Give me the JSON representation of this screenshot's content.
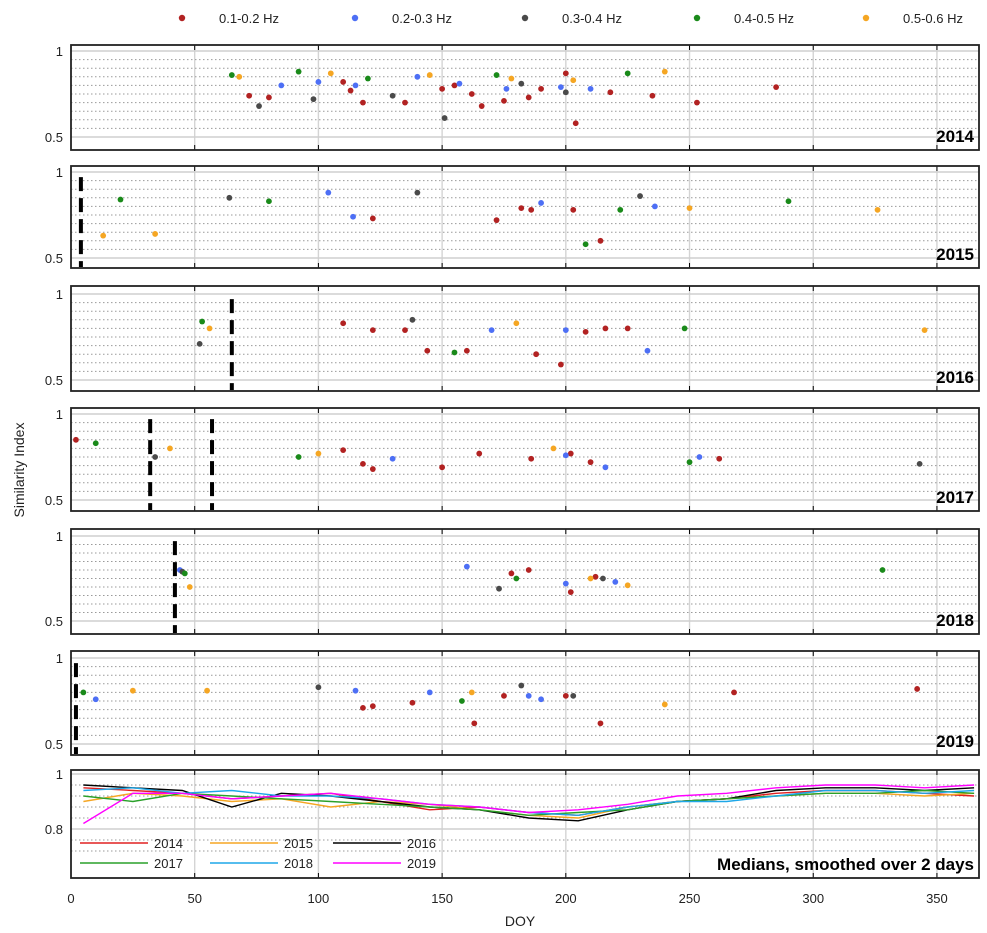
{
  "figure": {
    "xlabel": "DOY",
    "ylabel": "Similarity Index"
  },
  "legend": [
    {
      "label": "0.1-0.2 Hz",
      "color": "#b22222"
    },
    {
      "label": "0.2-0.3 Hz",
      "color": "#4d6ff5"
    },
    {
      "label": "0.3-0.4 Hz",
      "color": "#4a4a4a"
    },
    {
      "label": "0.4-0.5 Hz",
      "color": "#1a8a1a"
    },
    {
      "label": "0.5-0.6 Hz",
      "color": "#f5a623"
    }
  ],
  "chart_data": [
    {
      "type": "scatter",
      "panel_label": "2014",
      "xlim": [
        0,
        367
      ],
      "ylim": [
        0.4,
        1.02
      ],
      "yticks": [
        0.5,
        1
      ],
      "xticks": [
        0,
        50,
        100,
        150,
        200,
        250,
        300,
        350
      ],
      "grid": true,
      "dashed_markers_doy": [],
      "series": [
        {
          "name": "0.1-0.2 Hz",
          "x": [
            72,
            80,
            110,
            113,
            118,
            135,
            150,
            155,
            162,
            166,
            175,
            185,
            190,
            200,
            204,
            218,
            235,
            253,
            285
          ],
          "y": [
            0.74,
            0.73,
            0.82,
            0.77,
            0.7,
            0.7,
            0.78,
            0.8,
            0.75,
            0.68,
            0.71,
            0.73,
            0.78,
            0.87,
            0.58,
            0.76,
            0.74,
            0.7,
            0.79
          ]
        },
        {
          "name": "0.2-0.3 Hz",
          "x": [
            85,
            100,
            115,
            140,
            157,
            176,
            198,
            210
          ],
          "y": [
            0.8,
            0.82,
            0.8,
            0.85,
            0.81,
            0.78,
            0.79,
            0.78
          ]
        },
        {
          "name": "0.3-0.4 Hz",
          "x": [
            76,
            98,
            130,
            151,
            182,
            200
          ],
          "y": [
            0.68,
            0.72,
            0.74,
            0.61,
            0.81,
            0.76
          ]
        },
        {
          "name": "0.4-0.5 Hz",
          "x": [
            65,
            92,
            120,
            172,
            225
          ],
          "y": [
            0.86,
            0.88,
            0.84,
            0.86,
            0.87
          ]
        },
        {
          "name": "0.5-0.6 Hz",
          "x": [
            68,
            105,
            145,
            178,
            203,
            240
          ],
          "y": [
            0.85,
            0.87,
            0.86,
            0.84,
            0.83,
            0.88
          ]
        }
      ]
    },
    {
      "type": "scatter",
      "panel_label": "2015",
      "xlim": [
        0,
        367
      ],
      "ylim": [
        0.4,
        1.02
      ],
      "yticks": [
        0.5,
        1
      ],
      "xticks": [
        0,
        50,
        100,
        150,
        200,
        250,
        300,
        350
      ],
      "grid": true,
      "dashed_markers_doy": [
        4
      ],
      "series": [
        {
          "name": "0.1-0.2 Hz",
          "x": [
            122,
            172,
            182,
            186,
            203,
            214
          ],
          "y": [
            0.73,
            0.72,
            0.79,
            0.78,
            0.78,
            0.6
          ]
        },
        {
          "name": "0.2-0.3 Hz",
          "x": [
            104,
            114,
            190,
            236
          ],
          "y": [
            0.88,
            0.74,
            0.82,
            0.8
          ]
        },
        {
          "name": "0.3-0.4 Hz",
          "x": [
            64,
            140,
            230
          ],
          "y": [
            0.85,
            0.88,
            0.86
          ]
        },
        {
          "name": "0.4-0.5 Hz",
          "x": [
            20,
            80,
            208,
            222,
            290
          ],
          "y": [
            0.84,
            0.83,
            0.58,
            0.78,
            0.83
          ]
        },
        {
          "name": "0.5-0.6 Hz",
          "x": [
            13,
            34,
            250,
            326
          ],
          "y": [
            0.63,
            0.64,
            0.79,
            0.78
          ]
        }
      ]
    },
    {
      "type": "scatter",
      "panel_label": "2016",
      "xlim": [
        0,
        367
      ],
      "ylim": [
        0.4,
        1.02
      ],
      "yticks": [
        0.5,
        1
      ],
      "xticks": [
        0,
        50,
        100,
        150,
        200,
        250,
        300,
        350
      ],
      "grid": true,
      "dashed_markers_doy": [
        65
      ],
      "series": [
        {
          "name": "0.1-0.2 Hz",
          "x": [
            110,
            122,
            135,
            144,
            160,
            188,
            198,
            208,
            216,
            225
          ],
          "y": [
            0.83,
            0.79,
            0.79,
            0.67,
            0.67,
            0.65,
            0.59,
            0.78,
            0.8,
            0.8
          ]
        },
        {
          "name": "0.2-0.3 Hz",
          "x": [
            170,
            200,
            233
          ],
          "y": [
            0.79,
            0.79,
            0.67
          ]
        },
        {
          "name": "0.3-0.4 Hz",
          "x": [
            52,
            138
          ],
          "y": [
            0.71,
            0.85
          ]
        },
        {
          "name": "0.4-0.5 Hz",
          "x": [
            53,
            155,
            248
          ],
          "y": [
            0.84,
            0.66,
            0.8
          ]
        },
        {
          "name": "0.5-0.6 Hz",
          "x": [
            56,
            180,
            345
          ],
          "y": [
            0.8,
            0.83,
            0.79
          ]
        }
      ]
    },
    {
      "type": "scatter",
      "panel_label": "2017",
      "xlim": [
        0,
        367
      ],
      "ylim": [
        0.4,
        1.02
      ],
      "yticks": [
        0.5,
        1
      ],
      "xticks": [
        0,
        50,
        100,
        150,
        200,
        250,
        300,
        350
      ],
      "grid": true,
      "dashed_markers_doy": [
        32,
        57
      ],
      "series": [
        {
          "name": "0.1-0.2 Hz",
          "x": [
            2,
            110,
            118,
            122,
            150,
            165,
            186,
            202,
            210,
            262
          ],
          "y": [
            0.85,
            0.79,
            0.71,
            0.68,
            0.69,
            0.77,
            0.74,
            0.77,
            0.72,
            0.74
          ]
        },
        {
          "name": "0.2-0.3 Hz",
          "x": [
            130,
            200,
            216,
            254
          ],
          "y": [
            0.74,
            0.76,
            0.69,
            0.75
          ]
        },
        {
          "name": "0.3-0.4 Hz",
          "x": [
            34,
            343
          ],
          "y": [
            0.75,
            0.71
          ]
        },
        {
          "name": "0.4-0.5 Hz",
          "x": [
            10,
            92,
            250
          ],
          "y": [
            0.83,
            0.75,
            0.72
          ]
        },
        {
          "name": "0.5-0.6 Hz",
          "x": [
            40,
            100,
            195
          ],
          "y": [
            0.8,
            0.77,
            0.8
          ]
        }
      ]
    },
    {
      "type": "scatter",
      "panel_label": "2018",
      "xlim": [
        0,
        367
      ],
      "ylim": [
        0.4,
        1.02
      ],
      "yticks": [
        0.5,
        1
      ],
      "xticks": [
        0,
        50,
        100,
        150,
        200,
        250,
        300,
        350
      ],
      "grid": true,
      "dashed_markers_doy": [
        42
      ],
      "series": [
        {
          "name": "0.1-0.2 Hz",
          "x": [
            178,
            185,
            202,
            212
          ],
          "y": [
            0.78,
            0.8,
            0.67,
            0.76
          ]
        },
        {
          "name": "0.2-0.3 Hz",
          "x": [
            44,
            160,
            200,
            220
          ],
          "y": [
            0.8,
            0.82,
            0.72,
            0.73
          ]
        },
        {
          "name": "0.3-0.4 Hz",
          "x": [
            45,
            173,
            215
          ],
          "y": [
            0.79,
            0.69,
            0.75
          ]
        },
        {
          "name": "0.4-0.5 Hz",
          "x": [
            46,
            180,
            328
          ],
          "y": [
            0.78,
            0.75,
            0.8
          ]
        },
        {
          "name": "0.5-0.6 Hz",
          "x": [
            48,
            210,
            225
          ],
          "y": [
            0.7,
            0.75,
            0.71
          ]
        }
      ]
    },
    {
      "type": "scatter",
      "panel_label": "2019",
      "xlim": [
        0,
        367
      ],
      "ylim": [
        0.4,
        1.02
      ],
      "yticks": [
        0.5,
        1
      ],
      "xticks": [
        0,
        50,
        100,
        150,
        200,
        250,
        300,
        350
      ],
      "grid": true,
      "dashed_markers_doy": [
        2
      ],
      "series": [
        {
          "name": "0.1-0.2 Hz",
          "x": [
            118,
            122,
            138,
            163,
            175,
            200,
            214,
            268,
            342
          ],
          "y": [
            0.71,
            0.72,
            0.74,
            0.62,
            0.78,
            0.78,
            0.62,
            0.8,
            0.82
          ]
        },
        {
          "name": "0.2-0.3 Hz",
          "x": [
            10,
            115,
            145,
            185,
            190
          ],
          "y": [
            0.76,
            0.81,
            0.8,
            0.78,
            0.76
          ]
        },
        {
          "name": "0.3-0.4 Hz",
          "x": [
            100,
            182,
            203
          ],
          "y": [
            0.83,
            0.84,
            0.78
          ]
        },
        {
          "name": "0.4-0.5 Hz",
          "x": [
            5,
            158
          ],
          "y": [
            0.8,
            0.75
          ]
        },
        {
          "name": "0.5-0.6 Hz",
          "x": [
            25,
            55,
            162,
            240
          ],
          "y": [
            0.81,
            0.81,
            0.8,
            0.73
          ]
        }
      ]
    },
    {
      "type": "line",
      "panel_label": "Medians, smoothed over 2 days",
      "xlim": [
        0,
        367
      ],
      "ylim": [
        0.68,
        1.0
      ],
      "yticks": [
        0.8,
        1
      ],
      "xticks": [
        0,
        50,
        100,
        150,
        200,
        250,
        300,
        350
      ],
      "grid": true,
      "x": [
        5,
        25,
        45,
        65,
        85,
        105,
        125,
        145,
        165,
        185,
        205,
        225,
        245,
        265,
        285,
        305,
        325,
        345,
        365
      ],
      "series": [
        {
          "name": "2014",
          "color": "#e02020",
          "values": [
            0.95,
            0.94,
            0.93,
            0.91,
            0.92,
            0.93,
            0.9,
            0.87,
            0.88,
            0.86,
            0.85,
            0.88,
            0.9,
            0.91,
            0.93,
            0.94,
            0.94,
            0.93,
            0.92
          ]
        },
        {
          "name": "2015",
          "color": "#f5a623",
          "values": [
            0.9,
            0.93,
            0.92,
            0.9,
            0.91,
            0.88,
            0.9,
            0.89,
            0.87,
            0.85,
            0.84,
            0.88,
            0.9,
            0.91,
            0.92,
            0.93,
            0.93,
            0.92,
            0.93
          ]
        },
        {
          "name": "2016",
          "color": "#000000",
          "values": [
            0.96,
            0.95,
            0.94,
            0.88,
            0.93,
            0.92,
            0.9,
            0.88,
            0.87,
            0.84,
            0.83,
            0.87,
            0.9,
            0.91,
            0.94,
            0.95,
            0.95,
            0.94,
            0.95
          ]
        },
        {
          "name": "2017",
          "color": "#2aa02a",
          "values": [
            0.92,
            0.9,
            0.93,
            0.92,
            0.91,
            0.9,
            0.89,
            0.88,
            0.87,
            0.85,
            0.86,
            0.87,
            0.9,
            0.91,
            0.92,
            0.93,
            0.93,
            0.94,
            0.93
          ]
        },
        {
          "name": "2018",
          "color": "#1ea7e8",
          "values": [
            0.94,
            0.95,
            0.93,
            0.94,
            0.92,
            0.92,
            0.91,
            0.89,
            0.88,
            0.86,
            0.85,
            0.88,
            0.9,
            0.9,
            0.92,
            0.94,
            0.94,
            0.93,
            0.94
          ]
        },
        {
          "name": "2019",
          "color": "#ff00ff",
          "values": [
            0.82,
            0.93,
            0.93,
            0.91,
            0.92,
            0.93,
            0.91,
            0.89,
            0.88,
            0.86,
            0.87,
            0.89,
            0.92,
            0.93,
            0.95,
            0.96,
            0.96,
            0.95,
            0.96
          ]
        }
      ]
    }
  ]
}
